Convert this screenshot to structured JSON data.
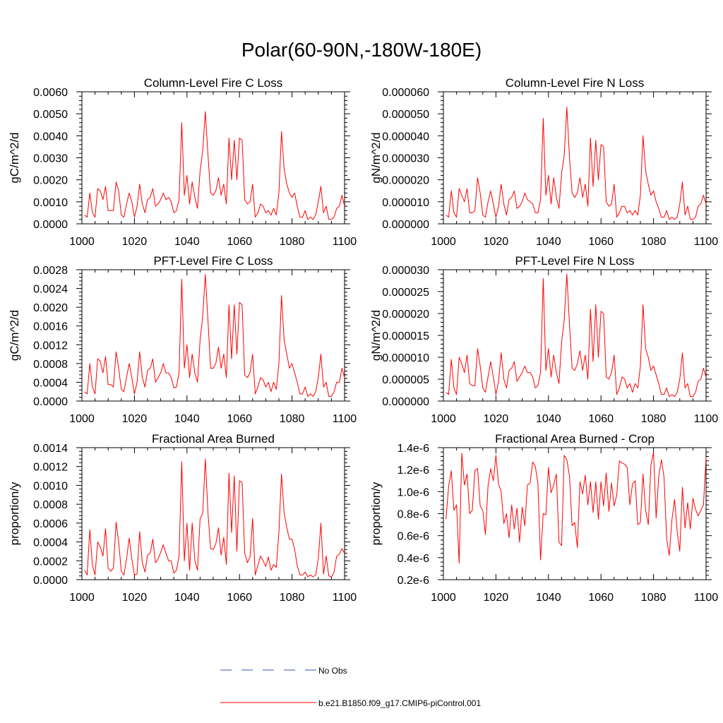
{
  "figure_title": "Polar(60-90N,-180W-180E)",
  "legend": {
    "entries": [
      {
        "label": "No Obs",
        "style": "dashed",
        "color": "#3a4fbf"
      },
      {
        "label": "b.e21.B1850.f09_g17.CMIP6-piControl.001",
        "style": "solid",
        "color": "#ff0000"
      }
    ]
  },
  "chart_data": [
    {
      "type": "line",
      "title": "Column-Level Fire C Loss",
      "ylabel": "gC/m^2/d",
      "xlabel": "",
      "xlim": [
        1000,
        1100
      ],
      "ylim": [
        0,
        0.006
      ],
      "xticks": [
        "1000",
        "1020",
        "1040",
        "1060",
        "1080",
        "1100"
      ],
      "yticks": [
        "0.0000",
        "0.0010",
        "0.0020",
        "0.0030",
        "0.0040",
        "0.0050",
        "0.0060"
      ],
      "series": [
        {
          "name": "b.e21.B1850.f09_g17.CMIP6-piControl.001",
          "color": "#ff0000",
          "x_start": 1001,
          "values": [
            0.0004,
            0.0003,
            0.0014,
            0.0005,
            0.0003,
            0.0016,
            0.0015,
            0.0011,
            0.0017,
            0.0006,
            0.0006,
            0.0006,
            0.0019,
            0.0015,
            0.0004,
            0.0003,
            0.0009,
            0.0014,
            0.001,
            0.0003,
            0.0008,
            0.0018,
            0.0009,
            0.0005,
            0.0011,
            0.0012,
            0.0016,
            0.0008,
            0.0009,
            0.0011,
            0.0014,
            0.0011,
            0.0012,
            0.001,
            0.0005,
            0.0006,
            0.0011,
            0.0046,
            0.0013,
            0.0022,
            0.0009,
            0.0019,
            0.0012,
            0.0007,
            0.0024,
            0.0033,
            0.0051,
            0.0031,
            0.0014,
            0.0013,
            0.0015,
            0.0021,
            0.0013,
            0.0018,
            0.0009,
            0.0039,
            0.002,
            0.0038,
            0.002,
            0.0039,
            0.0038,
            0.0011,
            0.0009,
            0.001,
            0.0018,
            0.0003,
            0.0005,
            0.0009,
            0.0008,
            0.0005,
            0.0006,
            0.0004,
            0.0007,
            0.0004,
            0.0014,
            0.0042,
            0.0025,
            0.0018,
            0.0014,
            0.0012,
            0.0014,
            0.0008,
            0.0003,
            0.0003,
            0.0006,
            0.0002,
            0.0003,
            0.0002,
            0.0004,
            0.001,
            0.0017,
            0.0005,
            0.0008,
            0.0002,
            0.0002,
            0.0003,
            0.0007,
            0.0008,
            0.0013,
            0.0008
          ]
        }
      ]
    },
    {
      "type": "line",
      "title": "Column-Level Fire N Loss",
      "ylabel": "gN/m^2/d",
      "xlabel": "",
      "xlim": [
        1000,
        1100
      ],
      "ylim": [
        0,
        6e-05
      ],
      "xticks": [
        "1000",
        "1020",
        "1040",
        "1060",
        "1080",
        "1100"
      ],
      "yticks": [
        "0.000000",
        "0.000010",
        "0.000020",
        "0.000030",
        "0.000040",
        "0.000050",
        "0.000060"
      ],
      "series": [
        {
          "name": "b.e21.B1850.f09_g17.CMIP6-piControl.001",
          "color": "#ff0000",
          "x_start": 1001,
          "values": [
            4e-06,
            3e-06,
            1.5e-05,
            5e-06,
            3e-06,
            1.6e-05,
            1.3e-05,
            1e-05,
            1.6e-05,
            5e-06,
            5e-06,
            6e-06,
            2.1e-05,
            1.4e-05,
            4e-06,
            3e-06,
            1e-05,
            1.5e-05,
            9e-06,
            3e-06,
            8e-06,
            1.8e-05,
            9e-06,
            4e-06,
            1.1e-05,
            1.2e-05,
            1.5e-05,
            7e-06,
            8e-06,
            1e-05,
            1.4e-05,
            1.1e-05,
            1e-05,
            9e-06,
            5e-06,
            5e-06,
            1.1e-05,
            4.8e-05,
            1.3e-05,
            2.2e-05,
            9e-06,
            2.1e-05,
            1.2e-05,
            7e-06,
            2.3e-05,
            3.1e-05,
            5.3e-05,
            3e-05,
            1.4e-05,
            1.2e-05,
            1.4e-05,
            2.1e-05,
            1.2e-05,
            1.8e-05,
            8e-06,
            3.9e-05,
            1.7e-05,
            3.8e-05,
            2e-05,
            3.6e-05,
            3.5e-05,
            1e-05,
            8e-06,
            9e-06,
            1.8e-05,
            3e-06,
            5e-06,
            8e-06,
            8e-06,
            5e-06,
            6e-06,
            4e-06,
            6e-06,
            4e-06,
            1.3e-05,
            4e-05,
            2.4e-05,
            1.8e-05,
            1.3e-05,
            1.5e-05,
            1e-05,
            7e-06,
            3e-06,
            3e-06,
            6e-06,
            2e-06,
            3e-06,
            2e-06,
            3e-06,
            9e-06,
            1.9e-05,
            4e-06,
            8e-06,
            2e-06,
            2e-06,
            3e-06,
            8e-06,
            9e-06,
            1.3e-05,
            9e-06
          ]
        }
      ]
    },
    {
      "type": "line",
      "title": "PFT-Level Fire C Loss",
      "ylabel": "gC/m^2/d",
      "xlabel": "",
      "xlim": [
        1000,
        1100
      ],
      "ylim": [
        0,
        0.0028
      ],
      "xticks": [
        "1000",
        "1020",
        "1040",
        "1060",
        "1080",
        "1100"
      ],
      "yticks": [
        "0.0000",
        "0.0004",
        "0.0008",
        "0.0012",
        "0.0016",
        "0.0020",
        "0.0024",
        "0.0028"
      ],
      "series": [
        {
          "name": "b.e21.B1850.f09_g17.CMIP6-piControl.001",
          "color": "#ff0000",
          "x_start": 1001,
          "values": [
            0.0002,
            0.00015,
            0.0008,
            0.0003,
            0.00015,
            0.0009,
            0.00085,
            0.0006,
            0.00095,
            0.00035,
            0.00035,
            0.0003,
            0.00105,
            0.0007,
            0.00025,
            0.0002,
            0.0005,
            0.0008,
            0.0005,
            0.00015,
            0.0004,
            0.00105,
            0.0005,
            0.0003,
            0.00065,
            0.0007,
            0.0009,
            0.0004,
            0.0005,
            0.0006,
            0.0008,
            0.0006,
            0.0006,
            0.0005,
            0.00028,
            0.0003,
            0.0006,
            0.0026,
            0.0007,
            0.0012,
            0.0005,
            0.001,
            0.0006,
            0.0004,
            0.0013,
            0.0018,
            0.0027,
            0.0017,
            0.0007,
            0.0007,
            0.0008,
            0.00115,
            0.0007,
            0.001,
            0.0005,
            0.00205,
            0.0009,
            0.00205,
            0.001,
            0.0021,
            0.00205,
            0.00055,
            0.0005,
            0.0006,
            0.001,
            0.00015,
            0.0003,
            0.0005,
            0.00045,
            0.0003,
            0.0004,
            0.0002,
            0.0004,
            0.00025,
            0.0008,
            0.00225,
            0.0013,
            0.001,
            0.0007,
            0.0008,
            0.0006,
            0.0004,
            0.00015,
            0.00015,
            0.0003,
            0.0001,
            0.00015,
            0.0001,
            0.0002,
            0.0005,
            0.001,
            0.0003,
            0.0004,
            0.0001,
            0.0001,
            0.0002,
            0.0004,
            0.0004,
            0.0007,
            0.0005
          ]
        }
      ]
    },
    {
      "type": "line",
      "title": "PFT-Level Fire N Loss",
      "ylabel": "gN/m^2/d",
      "xlabel": "",
      "xlim": [
        1000,
        1100
      ],
      "ylim": [
        0,
        3e-05
      ],
      "xticks": [
        "1000",
        "1020",
        "1040",
        "1060",
        "1080",
        "1100"
      ],
      "yticks": [
        "0.000000",
        "0.000005",
        "0.000010",
        "0.000015",
        "0.000020",
        "0.000025",
        "0.000030"
      ],
      "series": [
        {
          "name": "b.e21.B1850.f09_g17.CMIP6-piControl.001",
          "color": "#ff0000",
          "x_start": 1001,
          "values": [
            2e-06,
            1.5e-06,
            9.5e-06,
            3e-06,
            1.5e-06,
            1e-05,
            8.5e-06,
            6.5e-06,
            1.05e-05,
            4e-06,
            3.5e-06,
            3.5e-06,
            1.2e-05,
            8e-06,
            3e-06,
            2e-06,
            5.5e-06,
            9e-06,
            5.5e-06,
            1.5e-06,
            4.5e-06,
            1.1e-05,
            5e-06,
            3e-06,
            7e-06,
            7.5e-06,
            9e-06,
            4.5e-06,
            5.5e-06,
            6.5e-06,
            8e-06,
            6.5e-06,
            6.5e-06,
            5.5e-06,
            3e-06,
            3.5e-06,
            6.5e-06,
            2.8e-05,
            7e-06,
            1.2e-05,
            5.5e-06,
            1.05e-05,
            6.5e-06,
            4e-06,
            1.35e-05,
            1.85e-05,
            2.9e-05,
            1.75e-05,
            7.5e-06,
            7e-06,
            8.5e-06,
            1.15e-05,
            7e-06,
            1.05e-05,
            5e-06,
            2.1e-05,
            9e-06,
            2.2e-05,
            1e-05,
            2.05e-05,
            2e-05,
            5.5e-06,
            5e-06,
            6.5e-06,
            1.05e-05,
            1.5e-06,
            3e-06,
            5.5e-06,
            5e-06,
            3e-06,
            4e-06,
            2e-06,
            4e-06,
            3e-06,
            8e-06,
            2.2e-05,
            1.2e-05,
            1e-05,
            7e-06,
            8e-06,
            6e-06,
            4e-06,
            1.5e-06,
            1.5e-06,
            3e-06,
            1e-06,
            1.5e-06,
            1e-06,
            2e-06,
            5e-06,
            1.1e-05,
            3e-06,
            4e-06,
            1e-06,
            1e-06,
            2e-06,
            4.5e-06,
            5e-06,
            7.5e-06,
            5.5e-06
          ]
        }
      ]
    },
    {
      "type": "line",
      "title": "Fractional Area Burned",
      "ylabel": "proportion/y",
      "xlabel": "",
      "xlim": [
        1000,
        1100
      ],
      "ylim": [
        0,
        0.0014
      ],
      "xticks": [
        "1000",
        "1020",
        "1040",
        "1060",
        "1080",
        "1100"
      ],
      "yticks": [
        "0.0000",
        "0.0002",
        "0.0004",
        "0.0006",
        "0.0008",
        "0.0010",
        "0.0012",
        "0.0014"
      ],
      "series": [
        {
          "name": "b.e21.B1850.f09_g17.CMIP6-piControl.001",
          "color": "#ff0000",
          "x_start": 1001,
          "values": [
            0.0001,
            5e-05,
            0.00053,
            0.00015,
            5e-05,
            0.0004,
            0.00035,
            0.00025,
            0.00054,
            0.00012,
            9e-05,
            0.00012,
            0.00061,
            0.0004,
            9e-05,
            5e-05,
            0.00022,
            0.00044,
            0.00022,
            5e-05,
            6e-05,
            0.00051,
            0.00018,
            8e-05,
            0.00026,
            0.00028,
            0.00043,
            0.00018,
            0.00022,
            0.00029,
            0.00037,
            0.00028,
            0.0002,
            0.0002,
            7e-05,
            0.0001,
            0.00025,
            0.00125,
            0.0002,
            0.0006,
            0.0001,
            0.0006,
            0.0002,
            0.0001,
            0.00065,
            0.0007,
            0.00128,
            0.0007,
            0.00033,
            0.00032,
            0.00038,
            0.00055,
            0.00026,
            0.00045,
            0.00016,
            0.00113,
            0.0005,
            0.0011,
            0.0003,
            0.00105,
            0.00103,
            0.00028,
            0.00018,
            0.00024,
            0.00065,
            5e-05,
            0.00015,
            0.00025,
            0.0002,
            0.00014,
            0.00024,
            0.0001,
            0.00016,
            0.00013,
            0.0005,
            0.00112,
            0.00071,
            0.00055,
            0.00043,
            0.00043,
            0.00032,
            0.00015,
            5e-05,
            5e-05,
            8e-05,
            3e-05,
            5e-05,
            3e-05,
            5e-05,
            0.00022,
            0.0006,
            6e-05,
            0.00025,
            4e-05,
            3e-05,
            8e-05,
            0.00025,
            0.00027,
            0.00033,
            0.00028
          ]
        }
      ]
    },
    {
      "type": "line",
      "title": "Fractional Area Burned - Crop",
      "ylabel": "proportion/y",
      "xlabel": "",
      "xlim": [
        1000,
        1100
      ],
      "ylim": [
        2e-07,
        1.4e-06
      ],
      "xticks": [
        "1000",
        "1020",
        "1040",
        "1060",
        "1080",
        "1100"
      ],
      "yticks": [
        "0.2e-6",
        "0.4e-6",
        "0.6e-6",
        "0.8e-6",
        "1.0e-6",
        "1.2e-6",
        "1.4e-6"
      ],
      "series": [
        {
          "name": "b.e21.B1850.f09_g17.CMIP6-piControl.001",
          "color": "#ff0000",
          "x_start": 1001,
          "values": [
            7.5e-07,
            1.05e-06,
            1.19e-06,
            8.3e-07,
            8.8e-07,
            3.5e-07,
            1.35e-06,
            1.06e-06,
            1.16e-06,
            8e-07,
            8.3e-07,
            1.19e-06,
            1.21e-06,
            8.7e-07,
            8.3e-07,
            6.1e-07,
            1.05e-06,
            1.21e-06,
            1.1e-06,
            1.33e-06,
            1.07e-06,
            1e-06,
            7.1e-07,
            8e-07,
            5.8e-07,
            8.8e-07,
            6.6e-07,
            8.5e-07,
            5.4e-07,
            8.6e-07,
            6.9e-07,
            1.06e-06,
            1.08e-06,
            1.27e-06,
            1.23e-06,
            1.07e-06,
            3.8e-07,
            8e-07,
            7.9e-07,
            1.22e-06,
            9.9e-07,
            1.06e-06,
            1.16e-06,
            5.4e-07,
            5.1e-07,
            1.33e-06,
            1.29e-06,
            1.14e-06,
            6.9e-07,
            7.2e-07,
            4.9e-07,
            1.09e-06,
            9.8e-07,
            1.15e-06,
            8.8e-07,
            1.09e-06,
            8.1e-07,
            1.09e-06,
            7.5e-07,
            1.09e-06,
            8.7e-07,
            1.17e-06,
            8.2e-07,
            1.08e-06,
            8.7e-07,
            9.7e-07,
            1.28e-06,
            1.26e-06,
            1.25e-06,
            1.22e-06,
            8.8e-07,
            1.07e-06,
            1.1e-06,
            7e-07,
            7.2e-07,
            1.16e-06,
            8.3e-07,
            7e-07,
            1.24e-06,
            1.36e-06,
            7.6e-07,
            1.14e-06,
            1.29e-06,
            1.13e-06,
            5.7e-07,
            4.2e-07,
            7.4e-07,
            9.3e-07,
            6.4e-07,
            4.6e-07,
            1.04e-06,
            6.7e-07,
            9e-07,
            6.6e-07,
            9.4e-07,
            8.4e-07,
            7.8e-07,
            8.3e-07,
            8.8e-07,
            1.31e-06
          ]
        }
      ]
    }
  ]
}
